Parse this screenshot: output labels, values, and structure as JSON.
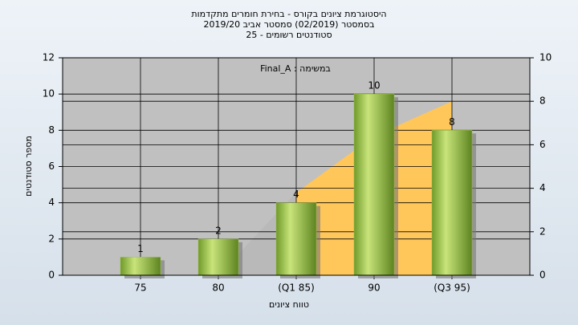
{
  "chart_data": {
    "type": "bar",
    "title": [
      "היסטוגרמת ציונים בקורס - בחירת חומרים מתקדמות",
      "בסמסטר  (02/2019)  סמסטר אביב 2019/20",
      "סטודנטים רשומים - 25"
    ],
    "annotation": "Final_A : במשימה",
    "ylabel": "מספר סטודנטים",
    "xlabel": "טווח ציונים",
    "categories": [
      "75",
      "80",
      "(Q1 85)",
      "90",
      "(Q3 95)"
    ],
    "values": [
      1,
      2,
      4,
      10,
      8
    ],
    "color": "#9cc04a",
    "ylim": [
      0,
      12
    ],
    "yticks": [
      0,
      2,
      4,
      6,
      8,
      10,
      12
    ],
    "y2lim": [
      0,
      10
    ],
    "y2ticks": [
      0,
      2,
      4,
      6,
      8,
      10
    ],
    "areas": [
      {
        "axis": "y2",
        "color": "#b9b9b9",
        "values": [
          null,
          0,
          3.8,
          null,
          null
        ]
      },
      {
        "axis": "y2",
        "color": "#ffc65a",
        "values": [
          null,
          null,
          3.8,
          6.4,
          8
        ]
      }
    ],
    "grid": true
  }
}
